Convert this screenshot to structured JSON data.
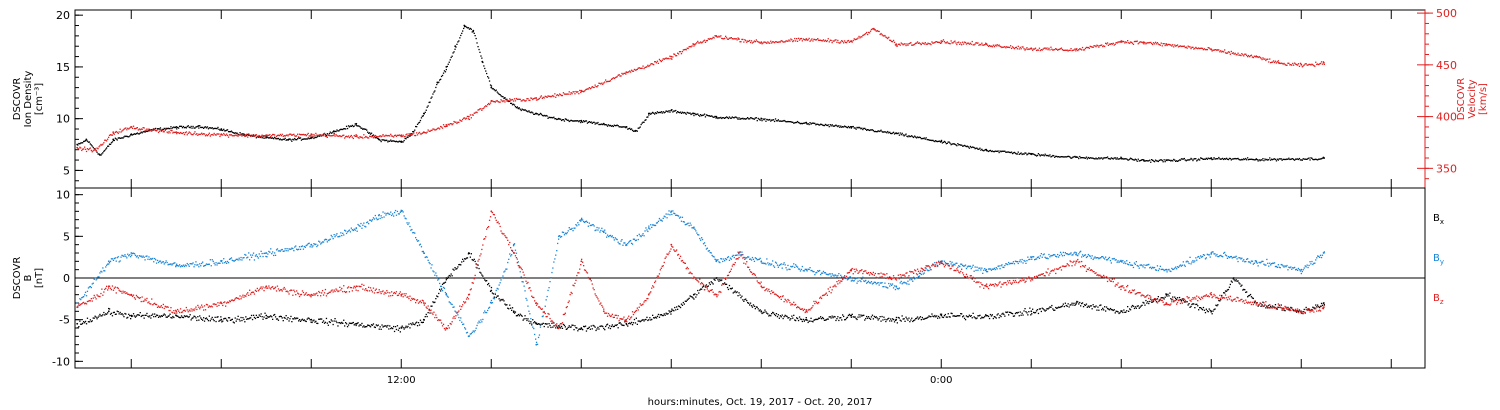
{
  "xaxis": {
    "label": "hours:minutes, Oct. 19, 2017 - Oct. 20, 2017",
    "ticks": [
      {
        "hour": 12,
        "label": "12:00"
      },
      {
        "hour": 24,
        "label": "0:00"
      }
    ]
  },
  "colors": {
    "black": "#000000",
    "red": "#e02020",
    "blue": "#1a86d6"
  },
  "chart_data": [
    {
      "type": "scatter",
      "panel": "plasma",
      "x_unit": "hours from 00:00 Oct. 19, 2017",
      "xlim": [
        4.75,
        34.75
      ],
      "y_left": {
        "label_lines": [
          "DSCOVR",
          "Ion Density",
          "[cm⁻³]"
        ],
        "lim": [
          3.3,
          20.5
        ],
        "ticks": [
          5,
          10,
          15,
          20
        ]
      },
      "y_right": {
        "label_lines": [
          "DSCOVR",
          "Velocity",
          "[km/s]"
        ],
        "lim": [
          331,
          503
        ],
        "ticks": [
          350,
          400,
          450,
          500
        ]
      },
      "series": [
        {
          "axis": "left",
          "color": "black",
          "x": [
            4.8,
            5.0,
            5.3,
            5.6,
            6.0,
            6.5,
            7.0,
            7.5,
            8.0,
            8.5,
            9.0,
            9.5,
            10.0,
            10.5,
            11.0,
            11.5,
            12.0,
            12.2,
            12.5,
            12.8,
            13.0,
            13.2,
            13.4,
            13.6,
            13.8,
            14.0,
            14.3,
            14.6,
            15.0,
            15.5,
            16.0,
            16.5,
            17.0,
            17.2,
            17.5,
            18.0,
            18.5,
            19.0,
            20.0,
            21.0,
            22.0,
            23.0,
            24.0,
            25.0,
            26.0,
            27.0,
            28.0,
            28.5,
            29.0,
            30.0,
            31.0,
            32.5
          ],
          "y": [
            7.5,
            8.0,
            6.5,
            8.0,
            8.5,
            9.0,
            9.2,
            9.3,
            9.0,
            8.5,
            8.2,
            8.0,
            8.2,
            8.8,
            9.5,
            8.0,
            7.8,
            8.5,
            10.5,
            13.5,
            15.0,
            17.0,
            19.0,
            18.5,
            15.5,
            13.0,
            12.0,
            11.0,
            10.5,
            10.0,
            9.8,
            9.5,
            9.2,
            8.8,
            10.5,
            10.8,
            10.5,
            10.2,
            10.0,
            9.6,
            9.2,
            8.6,
            7.8,
            7.0,
            6.6,
            6.3,
            6.2,
            6.0,
            6.0,
            6.2,
            6.1,
            6.2
          ]
        },
        {
          "axis": "right",
          "color": "red",
          "x": [
            4.8,
            5.2,
            5.6,
            6.0,
            7.0,
            8.0,
            9.0,
            10.0,
            11.0,
            12.0,
            12.5,
            13.0,
            13.5,
            14.0,
            15.0,
            16.0,
            17.0,
            18.0,
            18.5,
            19.0,
            19.5,
            20.0,
            21.0,
            22.0,
            22.5,
            23.0,
            24.0,
            25.0,
            26.0,
            27.0,
            28.0,
            28.5,
            29.0,
            30.0,
            31.0,
            31.5,
            32.0,
            32.5
          ],
          "y": [
            370,
            368,
            385,
            390,
            385,
            383,
            382,
            383,
            381,
            382,
            385,
            392,
            400,
            415,
            418,
            425,
            443,
            458,
            470,
            478,
            475,
            472,
            475,
            473,
            485,
            470,
            473,
            470,
            466,
            465,
            473,
            472,
            470,
            465,
            458,
            452,
            450,
            452
          ]
        }
      ]
    },
    {
      "type": "scatter",
      "panel": "magnetic",
      "x_unit": "hours from 00:00 Oct. 19, 2017",
      "xlim": [
        4.75,
        34.75
      ],
      "y_left": {
        "label_lines": [
          "DSCOVR",
          "B",
          "[nT]"
        ],
        "lim": [
          -10.8,
          10.8
        ],
        "ticks": [
          -10,
          -5,
          0,
          5,
          10
        ]
      },
      "zero_line": true,
      "legend": [
        {
          "name": "Bx",
          "base": "B",
          "sub": "x",
          "color": "black"
        },
        {
          "name": "By",
          "base": "B",
          "sub": "y",
          "color": "blue"
        },
        {
          "name": "Bz",
          "base": "B",
          "sub": "z",
          "color": "red"
        }
      ],
      "series": [
        {
          "name": "Bx",
          "color": "black",
          "x": [
            4.8,
            5.5,
            6.0,
            7.0,
            8.0,
            9.0,
            10.0,
            11.0,
            12.0,
            12.5,
            13.0,
            13.5,
            14.0,
            14.5,
            15.0,
            16.0,
            17.0,
            18.0,
            18.5,
            19.0,
            20.0,
            21.0,
            22.0,
            23.0,
            24.0,
            25.0,
            26.0,
            27.0,
            28.0,
            29.0,
            30.0,
            30.5,
            31.0,
            32.0,
            32.5
          ],
          "y": [
            -5.5,
            -4.0,
            -4.5,
            -4.5,
            -5.0,
            -4.5,
            -5.0,
            -5.5,
            -6.0,
            -5.0,
            0.0,
            3.0,
            -1.5,
            -4.0,
            -5.5,
            -6.0,
            -5.5,
            -4.0,
            -2.0,
            0.0,
            -4.0,
            -5.0,
            -4.5,
            -5.0,
            -4.5,
            -4.5,
            -4.0,
            -3.0,
            -4.0,
            -2.0,
            -4.0,
            0.0,
            -3.0,
            -4.0,
            -3.0
          ]
        },
        {
          "name": "By",
          "color": "blue",
          "x": [
            4.8,
            5.5,
            6.0,
            7.0,
            8.0,
            9.0,
            10.0,
            11.0,
            11.5,
            12.0,
            12.5,
            13.0,
            13.5,
            14.0,
            14.5,
            15.0,
            15.5,
            16.0,
            16.5,
            17.0,
            17.5,
            18.0,
            18.5,
            19.0,
            19.5,
            20.0,
            21.0,
            22.0,
            23.0,
            24.0,
            25.0,
            26.0,
            27.0,
            28.0,
            29.0,
            30.0,
            31.0,
            32.0,
            32.5
          ],
          "y": [
            -3.0,
            2.0,
            3.0,
            1.5,
            2.0,
            3.0,
            4.0,
            6.0,
            7.5,
            8.0,
            3.0,
            -2.0,
            -7.0,
            -3.0,
            4.0,
            -8.0,
            5.0,
            7.0,
            5.5,
            4.0,
            6.0,
            8.0,
            6.0,
            2.0,
            3.0,
            2.0,
            1.0,
            0.0,
            -1.0,
            2.0,
            1.0,
            2.5,
            3.0,
            2.0,
            1.0,
            3.0,
            2.0,
            1.0,
            3.0
          ]
        },
        {
          "name": "Bz",
          "color": "red",
          "x": [
            4.8,
            5.5,
            6.0,
            7.0,
            8.0,
            9.0,
            10.0,
            11.0,
            12.0,
            12.5,
            13.0,
            13.5,
            14.0,
            14.5,
            15.0,
            15.5,
            16.0,
            16.5,
            17.0,
            17.5,
            18.0,
            18.5,
            19.0,
            19.5,
            20.0,
            21.0,
            22.0,
            23.0,
            24.0,
            25.0,
            26.0,
            27.0,
            28.0,
            29.0,
            30.0,
            31.0,
            32.0,
            32.5
          ],
          "y": [
            -3.5,
            -1.0,
            -2.0,
            -4.0,
            -3.0,
            -1.0,
            -2.0,
            -1.0,
            -2.0,
            -3.0,
            -6.0,
            -2.0,
            8.0,
            3.0,
            -3.0,
            -6.0,
            2.0,
            -4.0,
            -5.0,
            -2.0,
            4.0,
            0.0,
            -2.0,
            3.0,
            -1.0,
            -4.0,
            1.0,
            0.0,
            2.0,
            -1.0,
            0.0,
            2.0,
            -1.0,
            -3.0,
            -2.0,
            -3.0,
            -4.0,
            -3.5
          ]
        }
      ]
    }
  ]
}
